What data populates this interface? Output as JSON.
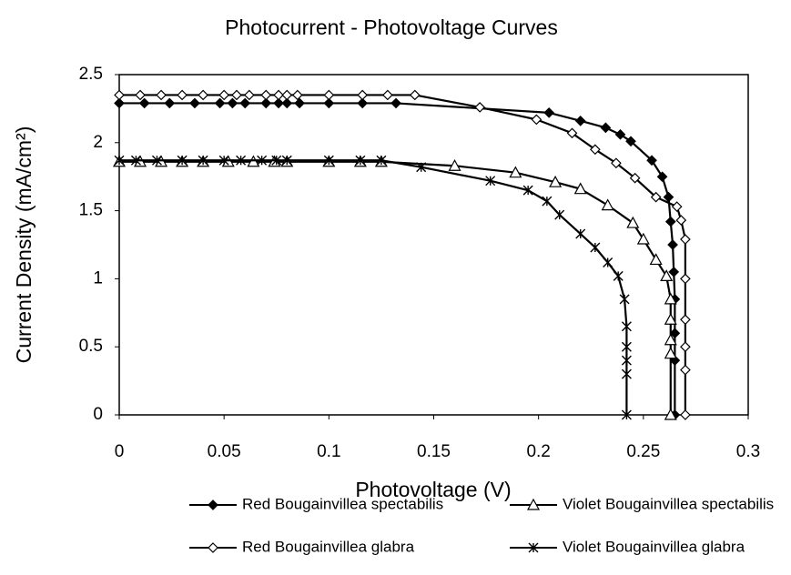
{
  "chart_data": {
    "type": "line",
    "title": "Photocurrent - Photovoltage Curves",
    "x_label": "Photovoltage (V)",
    "y_label": "Current Density (mA/cm²)",
    "xlim": [
      0,
      0.3
    ],
    "xticks": [
      0,
      0.05,
      0.1,
      0.15,
      0.2,
      0.25,
      0.3
    ],
    "ylim": [
      0,
      2.5
    ],
    "yticks": [
      0,
      0.5,
      1,
      1.5,
      2,
      2.5
    ],
    "grid": false,
    "legend": "bottom",
    "series": [
      {
        "name": "Red Bougainvillea spectabilis",
        "color": "#000000",
        "marker": "diamond-filled",
        "x": [
          0,
          0.012,
          0.024,
          0.036,
          0.048,
          0.054,
          0.06,
          0.07,
          0.076,
          0.08,
          0.086,
          0.1,
          0.116,
          0.132,
          0.205,
          0.22,
          0.232,
          0.239,
          0.244,
          0.254,
          0.259,
          0.262,
          0.263,
          0.264,
          0.2645,
          0.265,
          0.265,
          0.265,
          0.265
        ],
        "values": [
          2.29,
          2.29,
          2.29,
          2.29,
          2.29,
          2.29,
          2.29,
          2.29,
          2.29,
          2.29,
          2.29,
          2.29,
          2.29,
          2.29,
          2.22,
          2.16,
          2.11,
          2.06,
          2.01,
          1.87,
          1.75,
          1.6,
          1.42,
          1.25,
          1.05,
          0.85,
          0.6,
          0.4,
          0
        ]
      },
      {
        "name": "Violet Bougainvillea spectabilis",
        "color": "#000000",
        "marker": "triangle-open",
        "x": [
          0,
          0.01,
          0.02,
          0.03,
          0.04,
          0.052,
          0.064,
          0.074,
          0.08,
          0.1,
          0.115,
          0.125,
          0.16,
          0.189,
          0.208,
          0.22,
          0.233,
          0.245,
          0.25,
          0.256,
          0.261,
          0.263,
          0.263,
          0.263,
          0.263,
          0.263
        ],
        "values": [
          1.86,
          1.86,
          1.86,
          1.86,
          1.86,
          1.86,
          1.86,
          1.86,
          1.86,
          1.86,
          1.86,
          1.86,
          1.83,
          1.78,
          1.71,
          1.66,
          1.54,
          1.41,
          1.29,
          1.14,
          1.02,
          0.85,
          0.7,
          0.55,
          0.45,
          0
        ]
      },
      {
        "name": "Red Bougainvillea glabra",
        "color": "#000000",
        "marker": "diamond-open",
        "x": [
          0,
          0.01,
          0.02,
          0.03,
          0.04,
          0.05,
          0.056,
          0.062,
          0.07,
          0.076,
          0.08,
          0.085,
          0.1,
          0.116,
          0.128,
          0.141,
          0.172,
          0.199,
          0.216,
          0.227,
          0.237,
          0.246,
          0.256,
          0.266,
          0.268,
          0.27,
          0.27,
          0.27,
          0.27,
          0.27,
          0.27
        ],
        "values": [
          2.35,
          2.35,
          2.35,
          2.35,
          2.35,
          2.35,
          2.35,
          2.35,
          2.35,
          2.35,
          2.35,
          2.35,
          2.35,
          2.35,
          2.35,
          2.35,
          2.26,
          2.17,
          2.07,
          1.95,
          1.85,
          1.74,
          1.6,
          1.53,
          1.43,
          1.29,
          1.0,
          0.7,
          0.5,
          0.33,
          0
        ]
      },
      {
        "name": "Violet Bougainvillea glabra",
        "color": "#000000",
        "marker": "star",
        "x": [
          0,
          0.008,
          0.018,
          0.03,
          0.04,
          0.05,
          0.058,
          0.068,
          0.075,
          0.08,
          0.1,
          0.115,
          0.125,
          0.144,
          0.177,
          0.195,
          0.204,
          0.21,
          0.22,
          0.227,
          0.233,
          0.238,
          0.241,
          0.242,
          0.242,
          0.242,
          0.242,
          0.242
        ],
        "values": [
          1.87,
          1.87,
          1.87,
          1.87,
          1.87,
          1.87,
          1.87,
          1.87,
          1.87,
          1.87,
          1.87,
          1.87,
          1.87,
          1.82,
          1.72,
          1.65,
          1.57,
          1.47,
          1.33,
          1.23,
          1.12,
          1.02,
          0.85,
          0.65,
          0.5,
          0.4,
          0.3,
          0
        ]
      }
    ]
  }
}
